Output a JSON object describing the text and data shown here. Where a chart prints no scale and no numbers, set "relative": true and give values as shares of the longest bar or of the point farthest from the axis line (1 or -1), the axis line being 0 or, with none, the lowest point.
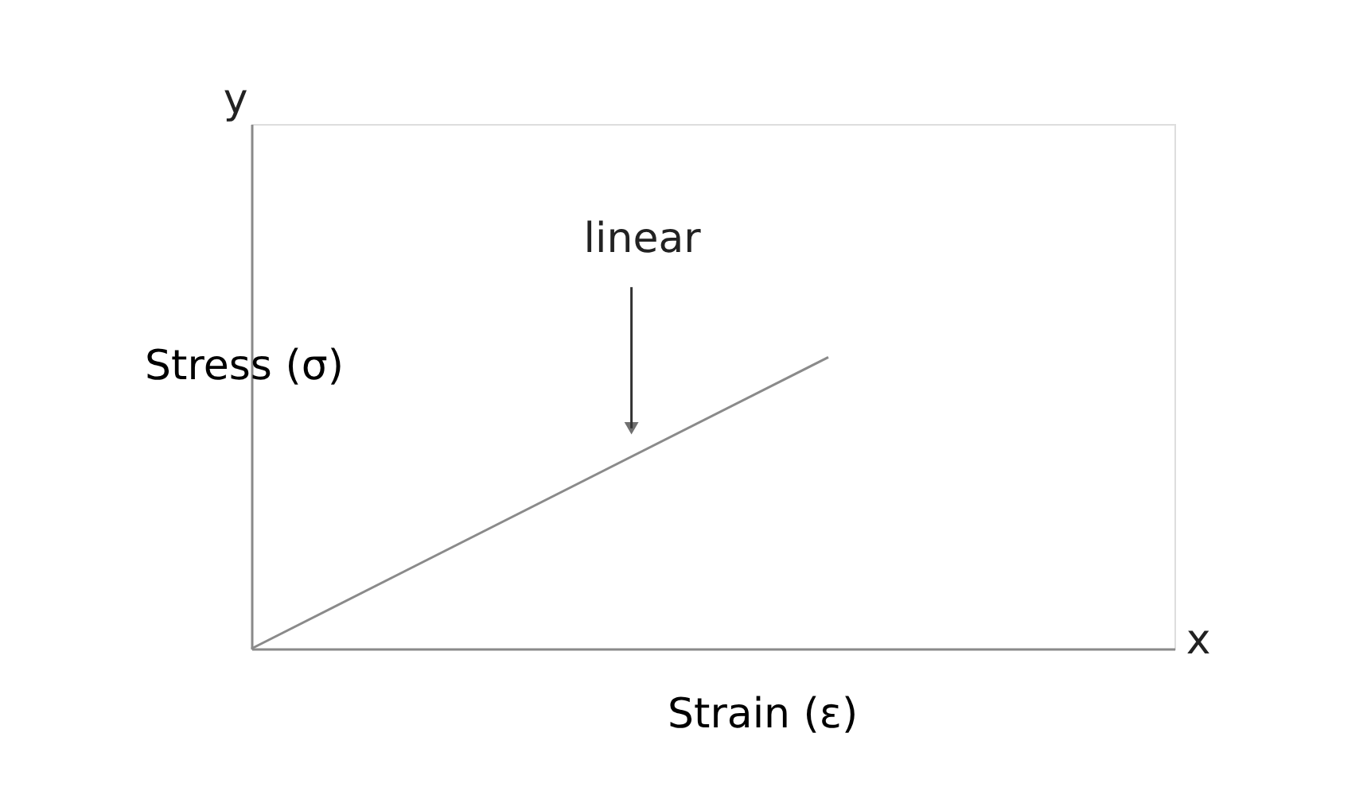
{
  "chart_data": {
    "type": "line",
    "relative": true,
    "categories": [
      null,
      null
    ],
    "series": [
      {
        "color": "#8a8a8a",
        "values": [
          0,
          1
        ]
      }
    ],
    "xlabel": "Strain (ε)",
    "ylabel": "Stress (σ)",
    "annotations": [
      "linear",
      "y",
      "x"
    ],
    "grid": false,
    "legend": false,
    "marker": "none",
    "line_style": "solid"
  }
}
